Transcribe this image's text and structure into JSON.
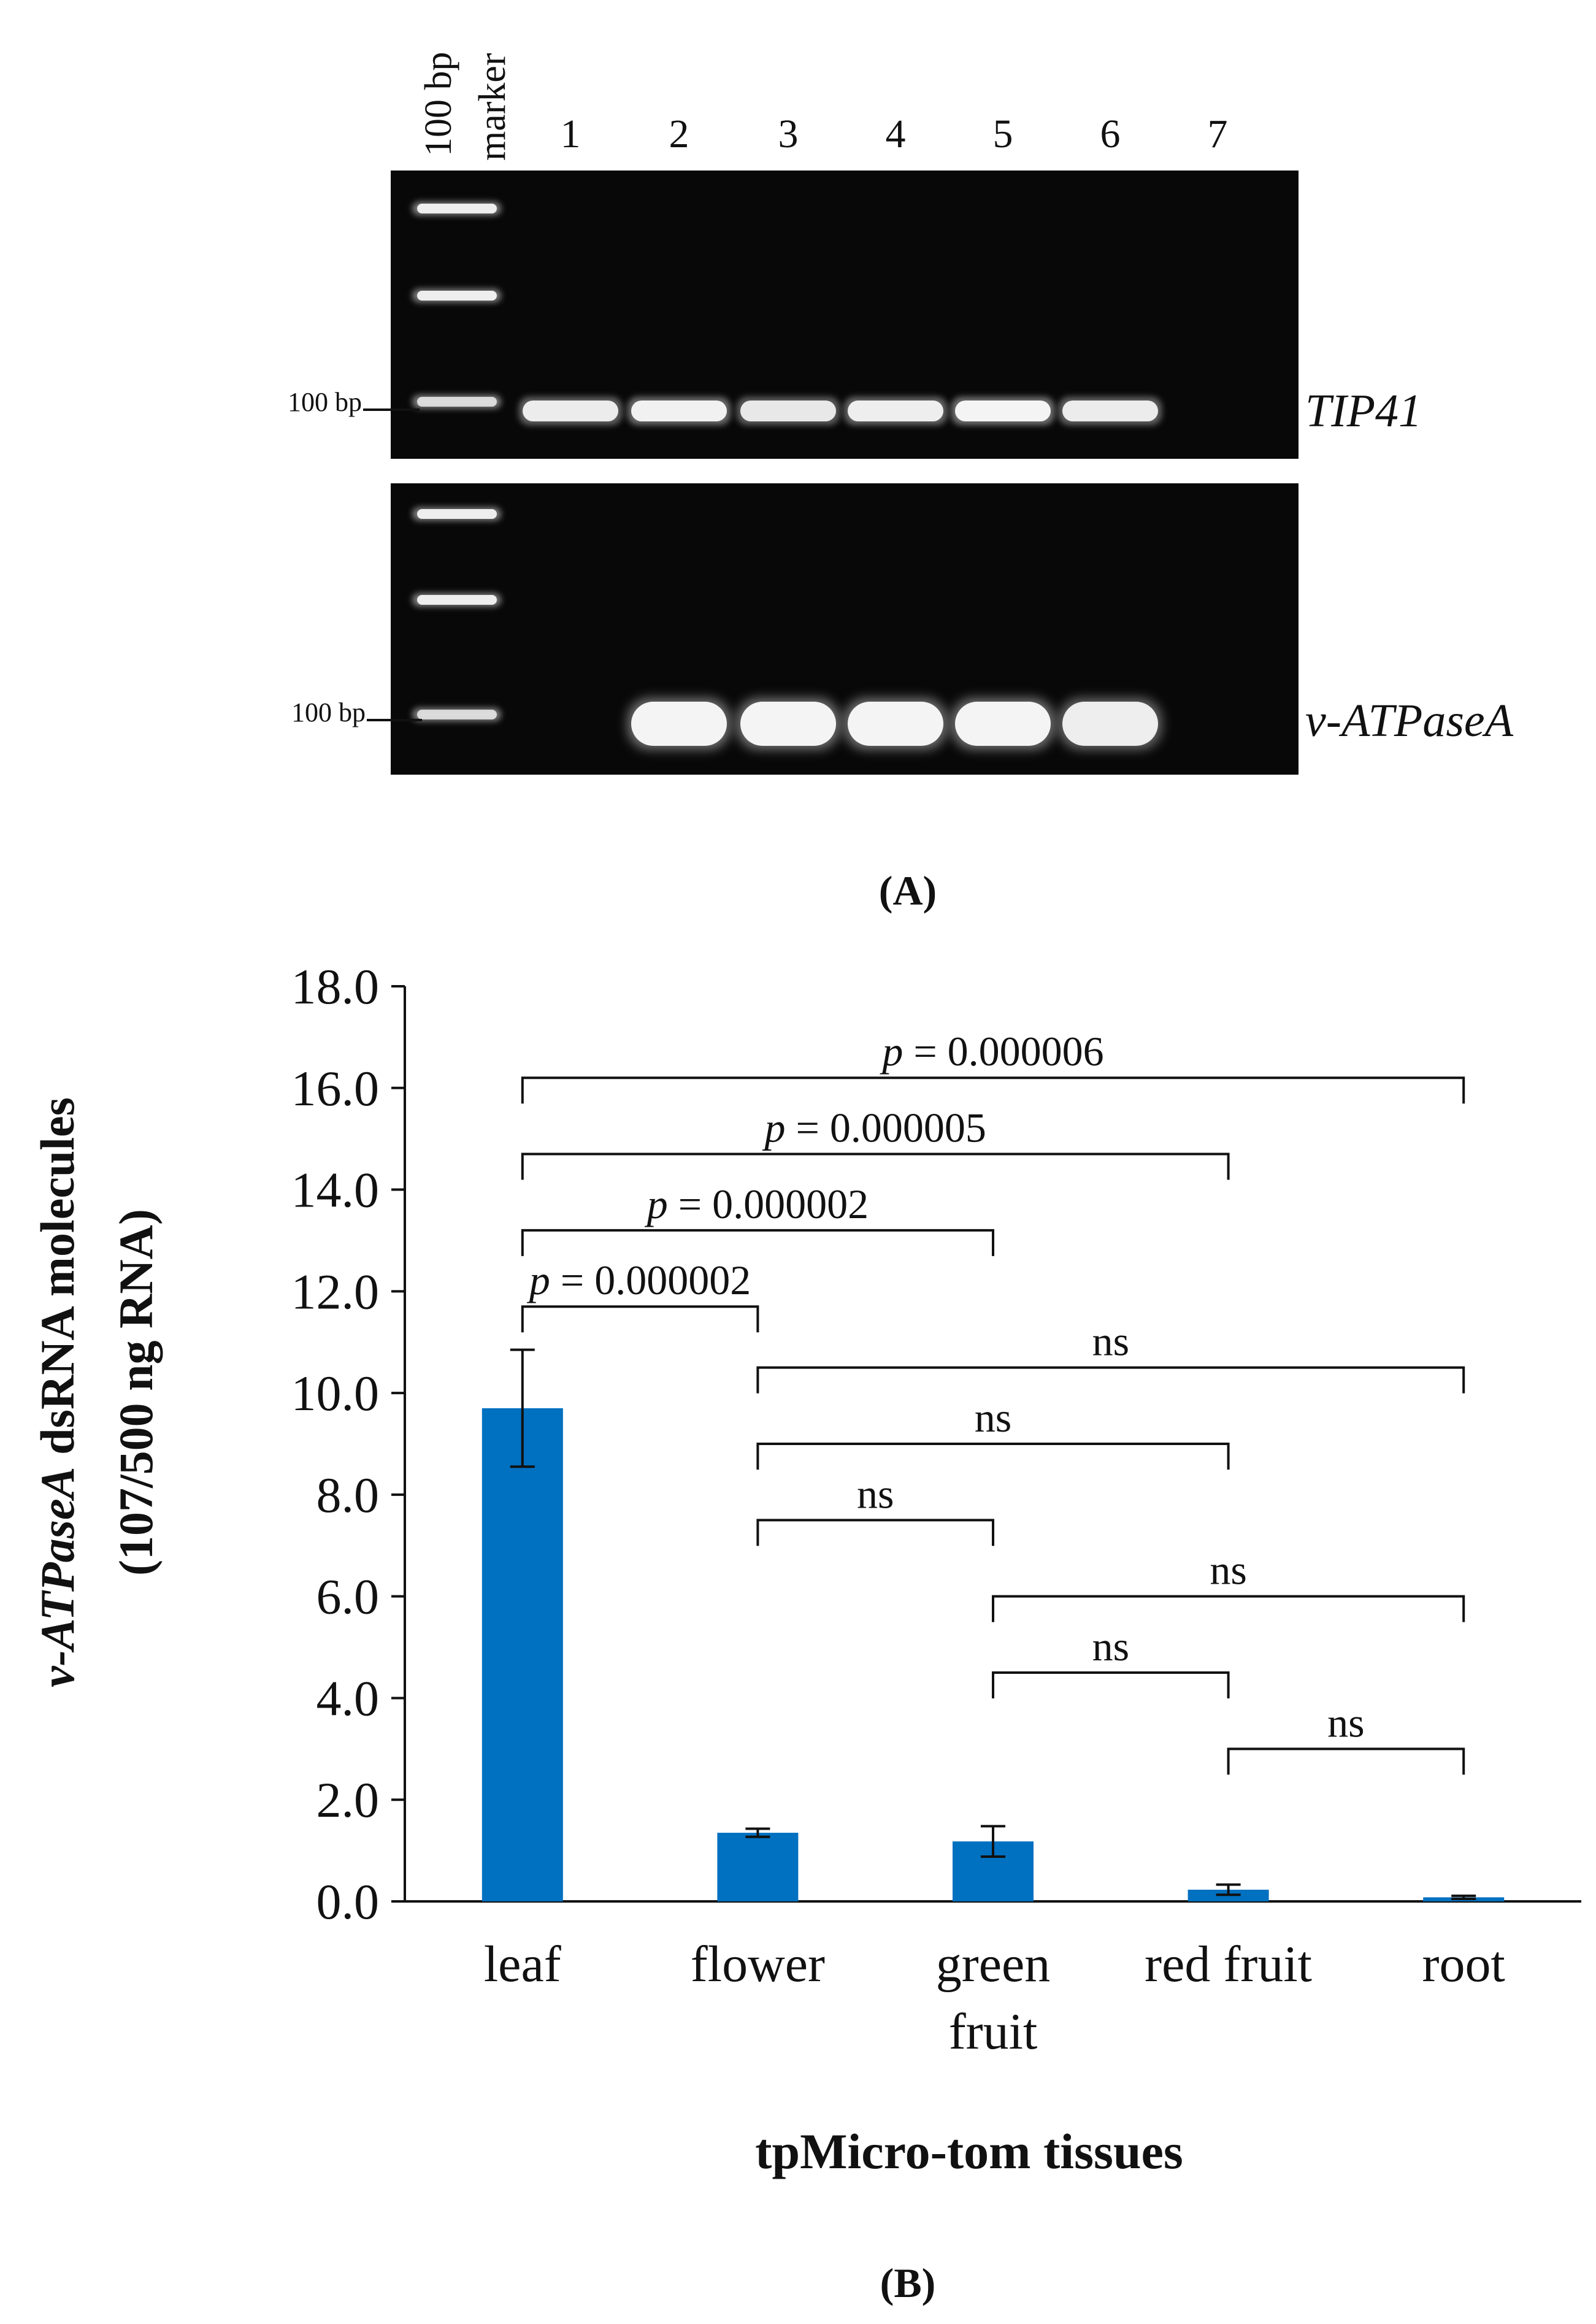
{
  "panel_a": {
    "marker_label_line1": "100 bp",
    "marker_label_line2": "marker",
    "lanes": [
      "1",
      "2",
      "3",
      "4",
      "5",
      "6",
      "7"
    ],
    "size_label_top": "100 bp",
    "size_label_bottom": "100 bp",
    "gene_top": "TIP41",
    "gene_bottom": "v-ATPaseA",
    "caption": "(A)",
    "gel_background": "#080808",
    "band_color": "#f4f4f4",
    "top_bands": [
      {
        "lane": "1",
        "intensity": 0.85
      },
      {
        "lane": "2",
        "intensity": 0.95
      },
      {
        "lane": "3",
        "intensity": 0.8
      },
      {
        "lane": "4",
        "intensity": 0.9
      },
      {
        "lane": "5",
        "intensity": 1.0
      },
      {
        "lane": "6",
        "intensity": 0.85
      },
      {
        "lane": "7",
        "intensity": 0
      }
    ],
    "bottom_bands": [
      {
        "lane": "1",
        "intensity": 0
      },
      {
        "lane": "2",
        "intensity": 1.0
      },
      {
        "lane": "3",
        "intensity": 1.0
      },
      {
        "lane": "4",
        "intensity": 1.0
      },
      {
        "lane": "5",
        "intensity": 1.0
      },
      {
        "lane": "6",
        "intensity": 0.9
      },
      {
        "lane": "7",
        "intensity": 0
      }
    ]
  },
  "panel_b": {
    "caption": "(B)"
  },
  "chart_data": {
    "type": "bar",
    "ylabel_line1_italic": "v-ATPaseA",
    "ylabel_line1_rest": " dsRNA molecules",
    "ylabel_line2": "(107/500 ng RNA)",
    "xlabel": "tpMicro-tom tissues",
    "categories": [
      [
        "leaf"
      ],
      [
        "flower"
      ],
      [
        "green",
        "fruit"
      ],
      [
        "red fruit"
      ],
      [
        "root"
      ]
    ],
    "values": [
      9.7,
      1.35,
      1.18,
      0.23,
      0.08
    ],
    "errors": [
      1.15,
      0.08,
      0.3,
      0.1,
      0.03
    ],
    "ylim": [
      0,
      18
    ],
    "yticks": [
      "0.0",
      "2.0",
      "4.0",
      "6.0",
      "8.0",
      "10.0",
      "12.0",
      "14.0",
      "16.0",
      "18.0"
    ],
    "bar_color": "#0070c0",
    "grid": false,
    "brackets": [
      {
        "from": 0,
        "to": 4,
        "y": 16.2,
        "p_symbol": "p",
        "label": " = 0.000006"
      },
      {
        "from": 0,
        "to": 3,
        "y": 14.7,
        "p_symbol": "p",
        "label": " = 0.000005"
      },
      {
        "from": 0,
        "to": 2,
        "y": 13.2,
        "p_symbol": "p",
        "label": " = 0.000002"
      },
      {
        "from": 0,
        "to": 1,
        "y": 11.7,
        "p_symbol": "p",
        "label": " = 0.000002"
      },
      {
        "from": 1,
        "to": 4,
        "y": 10.5,
        "p_symbol": "",
        "label": "ns"
      },
      {
        "from": 1,
        "to": 3,
        "y": 9.0,
        "p_symbol": "",
        "label": "ns"
      },
      {
        "from": 1,
        "to": 2,
        "y": 7.5,
        "p_symbol": "",
        "label": "ns"
      },
      {
        "from": 2,
        "to": 4,
        "y": 6.0,
        "p_symbol": "",
        "label": "ns"
      },
      {
        "from": 2,
        "to": 3,
        "y": 4.5,
        "p_symbol": "",
        "label": "ns"
      },
      {
        "from": 3,
        "to": 4,
        "y": 3.0,
        "p_symbol": "",
        "label": "ns"
      }
    ]
  }
}
